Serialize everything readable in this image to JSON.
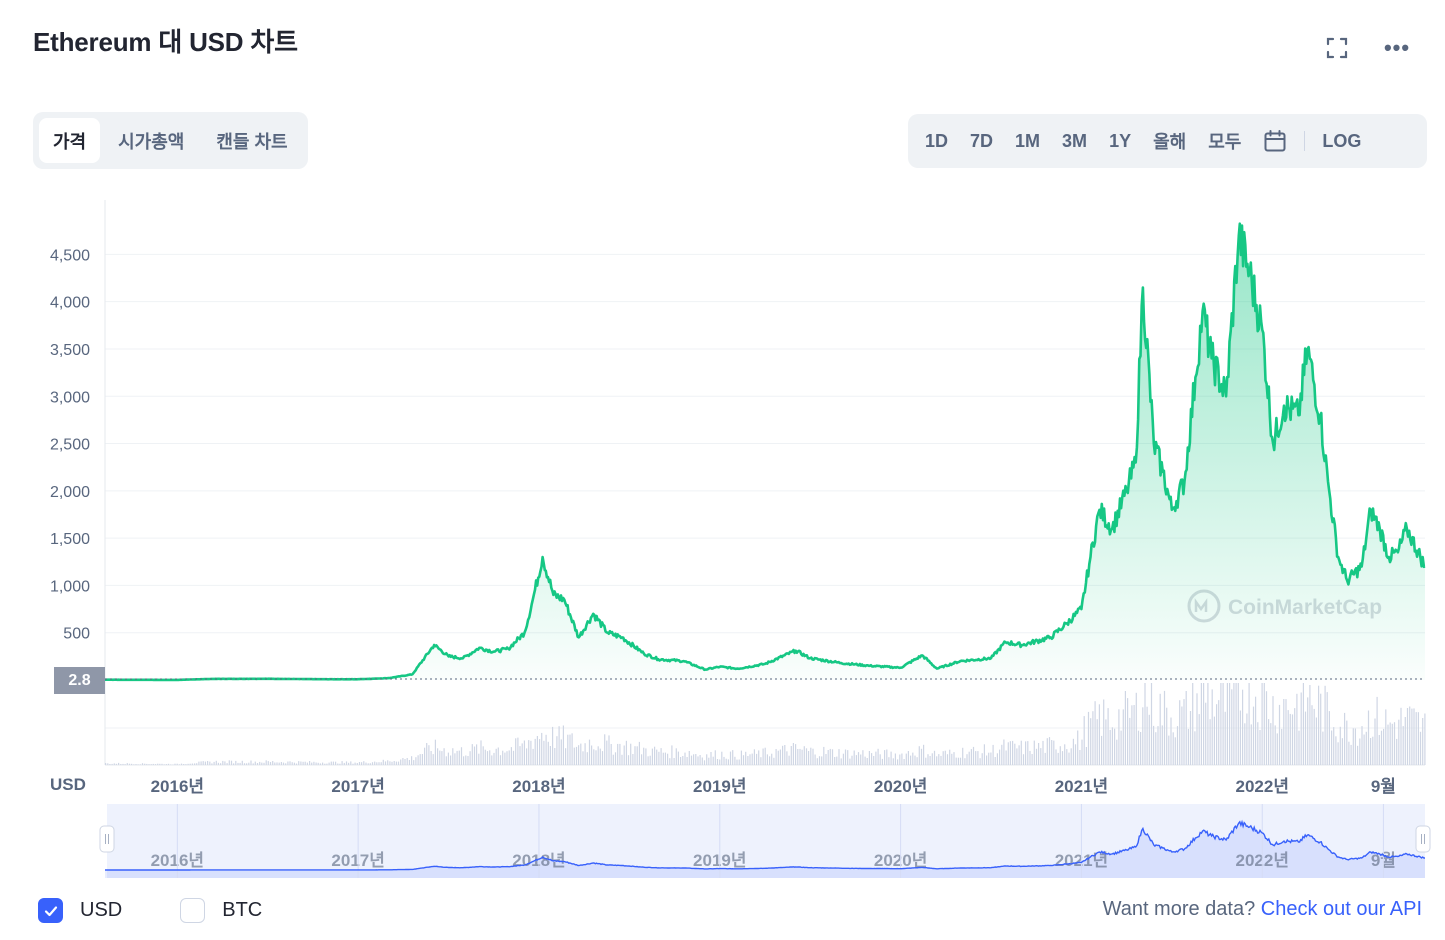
{
  "header": {
    "title": "Ethereum 대 USD 차트",
    "expand_icon": "expand-icon",
    "more_icon": "more-icon",
    "more_glyph": "•••"
  },
  "tabs": [
    {
      "label": "가격",
      "active": true
    },
    {
      "label": "시가총액",
      "active": false
    },
    {
      "label": "캔들 차트",
      "active": false
    }
  ],
  "ranges": [
    "1D",
    "7D",
    "1M",
    "3M",
    "1Y",
    "올해",
    "모두"
  ],
  "range_log": "LOG",
  "calendar_icon": "calendar-icon",
  "currency_axis_label": "USD",
  "current_price_tag": "2.8",
  "watermark": "CoinMarketCap",
  "chart_data": {
    "type": "area",
    "xlabel": "",
    "ylabel": "",
    "ylim": [
      0,
      4800
    ],
    "y_ticks": [
      500,
      1000,
      1500,
      2000,
      2500,
      3000,
      3500,
      4000,
      4500
    ],
    "y_tick_labels": [
      "500",
      "1,000",
      "1,500",
      "2,000",
      "2,500",
      "3,000",
      "3,500",
      "4,000",
      "4,500"
    ],
    "x_ticks": [
      {
        "label": "2016년",
        "t": 2016.0
      },
      {
        "label": "2017년",
        "t": 2017.0
      },
      {
        "label": "2018년",
        "t": 2018.0
      },
      {
        "label": "2019년",
        "t": 2019.0
      },
      {
        "label": "2020년",
        "t": 2020.0
      },
      {
        "label": "2021년",
        "t": 2021.0
      },
      {
        "label": "2022년",
        "t": 2022.0
      },
      {
        "label": "9월",
        "t": 2022.67
      }
    ],
    "xlim": [
      2015.6,
      2022.9
    ],
    "series": [
      {
        "color": "#16c784",
        "points": [
          [
            2015.6,
            3
          ],
          [
            2016.0,
            1
          ],
          [
            2016.2,
            12
          ],
          [
            2016.5,
            13
          ],
          [
            2016.8,
            8
          ],
          [
            2017.0,
            8
          ],
          [
            2017.17,
            20
          ],
          [
            2017.3,
            60
          ],
          [
            2017.42,
            370
          ],
          [
            2017.5,
            250
          ],
          [
            2017.58,
            230
          ],
          [
            2017.67,
            340
          ],
          [
            2017.75,
            300
          ],
          [
            2017.83,
            330
          ],
          [
            2017.92,
            500
          ],
          [
            2017.96,
            800
          ],
          [
            2018.02,
            1300
          ],
          [
            2018.08,
            900
          ],
          [
            2018.14,
            850
          ],
          [
            2018.22,
            450
          ],
          [
            2018.3,
            700
          ],
          [
            2018.38,
            500
          ],
          [
            2018.46,
            450
          ],
          [
            2018.58,
            280
          ],
          [
            2018.66,
            220
          ],
          [
            2018.8,
            200
          ],
          [
            2018.92,
            110
          ],
          [
            2019.0,
            140
          ],
          [
            2019.1,
            120
          ],
          [
            2019.25,
            170
          ],
          [
            2019.42,
            310
          ],
          [
            2019.5,
            230
          ],
          [
            2019.67,
            180
          ],
          [
            2019.83,
            150
          ],
          [
            2020.0,
            130
          ],
          [
            2020.12,
            260
          ],
          [
            2020.2,
            120
          ],
          [
            2020.33,
            200
          ],
          [
            2020.5,
            230
          ],
          [
            2020.58,
            400
          ],
          [
            2020.67,
            370
          ],
          [
            2020.83,
            450
          ],
          [
            2020.92,
            600
          ],
          [
            2021.0,
            750
          ],
          [
            2021.05,
            1300
          ],
          [
            2021.1,
            1800
          ],
          [
            2021.17,
            1600
          ],
          [
            2021.25,
            2000
          ],
          [
            2021.3,
            2300
          ],
          [
            2021.34,
            4150
          ],
          [
            2021.4,
            2500
          ],
          [
            2021.45,
            2200
          ],
          [
            2021.5,
            1800
          ],
          [
            2021.57,
            2100
          ],
          [
            2021.63,
            3200
          ],
          [
            2021.67,
            3900
          ],
          [
            2021.72,
            3400
          ],
          [
            2021.8,
            3000
          ],
          [
            2021.87,
            4700
          ],
          [
            2021.93,
            4300
          ],
          [
            2022.0,
            3700
          ],
          [
            2022.06,
            2500
          ],
          [
            2022.12,
            2900
          ],
          [
            2022.2,
            2800
          ],
          [
            2022.25,
            3500
          ],
          [
            2022.32,
            2800
          ],
          [
            2022.37,
            2000
          ],
          [
            2022.42,
            1300
          ],
          [
            2022.47,
            1050
          ],
          [
            2022.55,
            1200
          ],
          [
            2022.6,
            1800
          ],
          [
            2022.65,
            1600
          ],
          [
            2022.7,
            1300
          ],
          [
            2022.75,
            1350
          ],
          [
            2022.8,
            1600
          ],
          [
            2022.9,
            1200
          ]
        ]
      }
    ],
    "grid": true,
    "legend": "none"
  },
  "navigator_ticks": [
    "2016년",
    "2017년",
    "2018년",
    "2019년",
    "2020년",
    "2021년",
    "2022년",
    "9월"
  ],
  "currency_options": [
    {
      "label": "USD",
      "checked": true
    },
    {
      "label": "BTC",
      "checked": false
    }
  ],
  "api_prompt": "Want more data?",
  "api_link": "Check out our API"
}
